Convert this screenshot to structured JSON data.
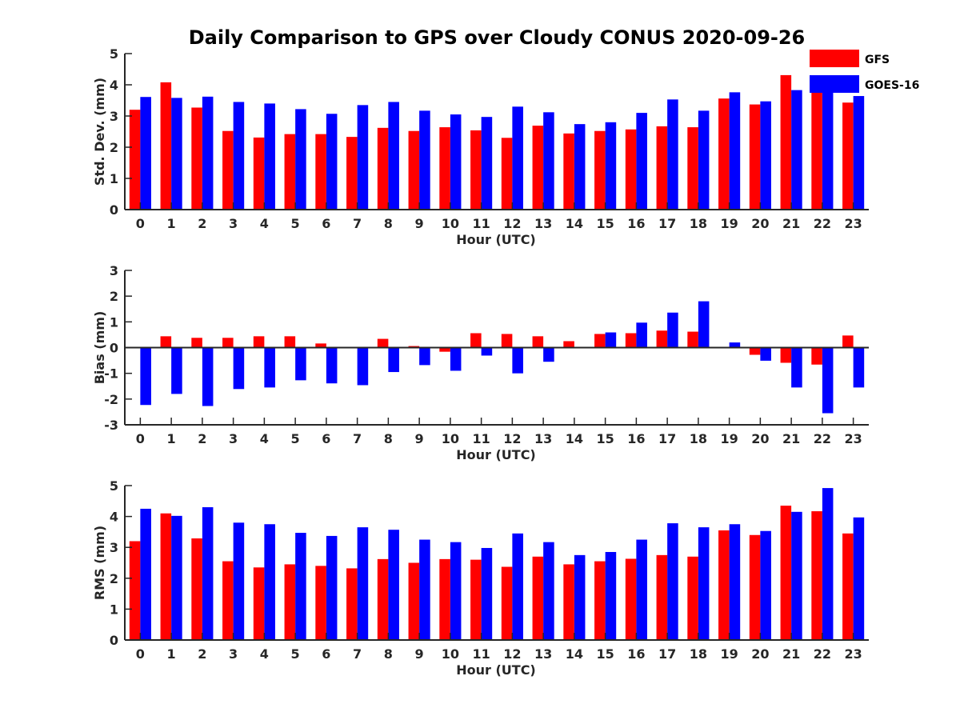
{
  "figure": {
    "title": "Daily Comparison to GPS over Cloudy CONUS 2020-09-26",
    "legend": {
      "placement": "top-right",
      "entries": [
        {
          "name": "GFS",
          "color": "#ff0000"
        },
        {
          "name": "GOES-16",
          "color": "#0000ff"
        }
      ]
    }
  },
  "chart_data": [
    {
      "type": "bar",
      "xlabel": "Hour (UTC)",
      "ylabel": "Std. Dev. (mm)",
      "ylim": [
        0,
        5
      ],
      "yticks": [
        0,
        1,
        2,
        3,
        4,
        5
      ],
      "categories": [
        "0",
        "1",
        "2",
        "3",
        "4",
        "5",
        "6",
        "7",
        "8",
        "9",
        "10",
        "11",
        "12",
        "13",
        "14",
        "15",
        "16",
        "17",
        "18",
        "19",
        "20",
        "21",
        "22",
        "23"
      ],
      "series": [
        {
          "name": "GFS",
          "color": "#ff0000",
          "values": [
            3.2,
            4.08,
            3.27,
            2.52,
            2.31,
            2.42,
            2.42,
            2.33,
            2.62,
            2.52,
            2.64,
            2.54,
            2.3,
            2.69,
            2.44,
            2.52,
            2.57,
            2.67,
            2.64,
            3.56,
            3.37,
            4.31,
            4.11,
            3.43
          ]
        },
        {
          "name": "GOES-16",
          "color": "#0000ff",
          "values": [
            3.61,
            3.58,
            3.62,
            3.45,
            3.4,
            3.22,
            3.07,
            3.35,
            3.45,
            3.17,
            3.05,
            2.97,
            3.3,
            3.12,
            2.74,
            2.8,
            3.1,
            3.53,
            3.17,
            3.76,
            3.47,
            3.83,
            4.18,
            3.64
          ]
        }
      ]
    },
    {
      "type": "bar",
      "xlabel": "Hour (UTC)",
      "ylabel": "Bias (mm)",
      "ylim": [
        -3,
        3
      ],
      "yticks": [
        -3,
        -2,
        -1,
        0,
        1,
        2,
        3
      ],
      "zero_line": true,
      "categories": [
        "0",
        "1",
        "2",
        "3",
        "4",
        "5",
        "6",
        "7",
        "8",
        "9",
        "10",
        "11",
        "12",
        "13",
        "14",
        "15",
        "16",
        "17",
        "18",
        "19",
        "20",
        "21",
        "22",
        "23"
      ],
      "series": [
        {
          "name": "GFS",
          "color": "#ff0000",
          "values": [
            0.0,
            0.44,
            0.38,
            0.38,
            0.44,
            0.44,
            0.16,
            0.0,
            0.34,
            0.06,
            -0.16,
            0.56,
            0.53,
            0.44,
            0.25,
            0.53,
            0.56,
            0.66,
            0.62,
            0.0,
            -0.28,
            -0.59,
            -0.66,
            0.47
          ]
        },
        {
          "name": "GOES-16",
          "color": "#0000ff",
          "values": [
            -2.23,
            -1.8,
            -2.27,
            -1.61,
            -1.55,
            -1.27,
            -1.39,
            -1.46,
            -0.95,
            -0.68,
            -0.9,
            -0.31,
            -1.0,
            -0.55,
            -0.03,
            0.59,
            0.97,
            1.36,
            1.8,
            0.2,
            -0.51,
            -1.55,
            -2.55,
            -1.55
          ]
        }
      ]
    },
    {
      "type": "bar",
      "xlabel": "Hour (UTC)",
      "ylabel": "RMS (mm)",
      "ylim": [
        0,
        5
      ],
      "yticks": [
        0,
        1,
        2,
        3,
        4,
        5
      ],
      "categories": [
        "0",
        "1",
        "2",
        "3",
        "4",
        "5",
        "6",
        "7",
        "8",
        "9",
        "10",
        "11",
        "12",
        "13",
        "14",
        "15",
        "16",
        "17",
        "18",
        "19",
        "20",
        "21",
        "22",
        "23"
      ],
      "series": [
        {
          "name": "GFS",
          "color": "#ff0000",
          "values": [
            3.2,
            4.1,
            3.29,
            2.55,
            2.35,
            2.45,
            2.4,
            2.32,
            2.62,
            2.5,
            2.62,
            2.6,
            2.37,
            2.7,
            2.45,
            2.55,
            2.63,
            2.75,
            2.7,
            3.55,
            3.4,
            4.35,
            4.17,
            3.45
          ]
        },
        {
          "name": "GOES-16",
          "color": "#0000ff",
          "values": [
            4.25,
            4.02,
            4.3,
            3.8,
            3.75,
            3.47,
            3.37,
            3.65,
            3.57,
            3.25,
            3.17,
            2.98,
            3.45,
            3.17,
            2.75,
            2.85,
            3.25,
            3.78,
            3.65,
            3.75,
            3.53,
            4.15,
            4.92,
            3.97
          ]
        }
      ]
    }
  ]
}
